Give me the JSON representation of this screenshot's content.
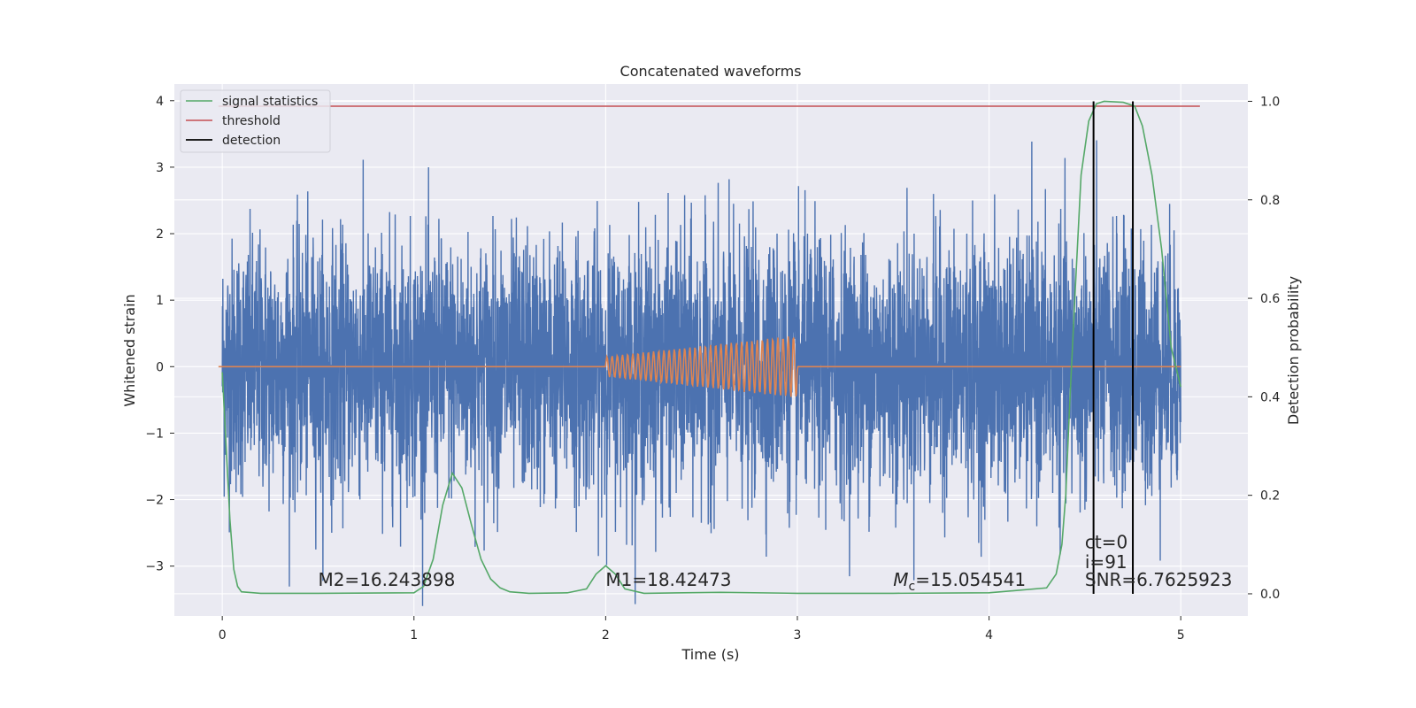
{
  "chart_data": {
    "type": "line",
    "title": "Concatenated waveforms",
    "xlabel": "Time (s)",
    "ylabel_left": "Whitened strain",
    "ylabel_right": "Detection probability",
    "xlim": [
      -0.25,
      5.35
    ],
    "ylim_left": [
      -3.75,
      4.25
    ],
    "ylim_right": [
      -0.045,
      1.035
    ],
    "x_ticks": [
      0,
      1,
      2,
      3,
      4,
      5
    ],
    "y_left_ticks": [
      -3,
      -2,
      -1,
      0,
      1,
      2,
      3,
      4
    ],
    "y_right_ticks": [
      0.0,
      0.2,
      0.4,
      0.6,
      0.8,
      1.0
    ],
    "grid": true,
    "legend_placement": "upper-left",
    "colors": {
      "strain": "#4c72b0",
      "injected": "#dd8452",
      "signal_statistics": "#55a868",
      "threshold": "#c44e52",
      "detection": "#000000",
      "background": "#eaeaf2",
      "grid": "#ffffff"
    },
    "series": [
      {
        "name": "",
        "role": "strain",
        "axis": "left",
        "x_range": [
          0,
          5
        ],
        "amplitude_typical": 1.2,
        "amplitude_max": 3.6
      },
      {
        "name": "",
        "role": "injected",
        "axis": "left",
        "x_range": [
          2.0,
          3.0
        ],
        "amplitude_start": 0.15,
        "amplitude_end": 0.47,
        "cycles": 37
      },
      {
        "name": "signal statistics",
        "role": "signal_statistics",
        "axis": "right",
        "x": [
          0.0,
          0.02,
          0.04,
          0.06,
          0.08,
          0.1,
          0.2,
          0.5,
          1.0,
          1.05,
          1.1,
          1.15,
          1.2,
          1.25,
          1.3,
          1.35,
          1.4,
          1.45,
          1.5,
          1.6,
          1.8,
          1.9,
          1.95,
          2.0,
          2.05,
          2.1,
          2.2,
          2.6,
          3.0,
          3.5,
          4.0,
          4.3,
          4.35,
          4.38,
          4.4,
          4.42,
          4.45,
          4.48,
          4.52,
          4.56,
          4.6,
          4.7,
          4.76,
          4.8,
          4.85,
          4.9,
          4.95,
          5.0
        ],
        "y": [
          0.45,
          0.3,
          0.15,
          0.05,
          0.015,
          0.004,
          0.001,
          0.001,
          0.002,
          0.015,
          0.07,
          0.18,
          0.245,
          0.215,
          0.14,
          0.07,
          0.03,
          0.012,
          0.004,
          0.001,
          0.002,
          0.01,
          0.04,
          0.057,
          0.04,
          0.01,
          0.001,
          0.003,
          0.001,
          0.001,
          0.002,
          0.012,
          0.04,
          0.1,
          0.2,
          0.38,
          0.62,
          0.85,
          0.96,
          0.995,
          1.0,
          0.998,
          0.99,
          0.95,
          0.85,
          0.7,
          0.5,
          0.42
        ]
      },
      {
        "name": "threshold",
        "role": "threshold",
        "axis": "right",
        "x": [
          -0.02,
          5.1
        ],
        "y": [
          0.99,
          0.99
        ]
      },
      {
        "name": "detection",
        "role": "detection",
        "axis": "right",
        "x": [
          4.545,
          4.75
        ],
        "y_range": [
          0.0,
          1.0
        ]
      }
    ],
    "annotations": [
      {
        "text": "M2=16.243898",
        "x": 0.5,
        "y": -3.3
      },
      {
        "text": "M1=18.42473",
        "x": 2.0,
        "y": -3.3
      },
      {
        "text_italic": "M",
        "text_sub": "c",
        "text_rest": "=15.054541",
        "x": 3.5,
        "y": -3.3
      },
      {
        "text": "ct=0",
        "x": 4.5,
        "y": -2.73
      },
      {
        "text": "i=91",
        "x": 4.5,
        "y": -3.03
      },
      {
        "text": "SNR=6.7625923",
        "x": 4.5,
        "y": -3.3
      }
    ]
  }
}
